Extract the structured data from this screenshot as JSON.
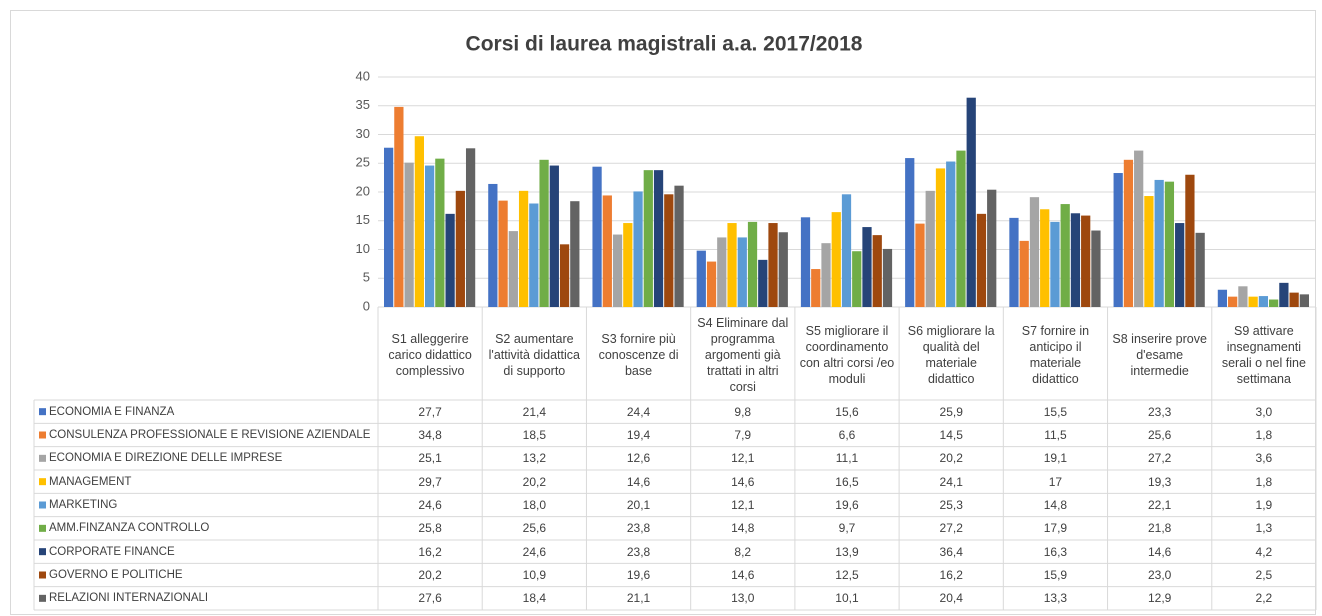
{
  "chart_data": {
    "type": "bar",
    "title": "Corsi di laurea magistrali a.a. 2017/2018",
    "categories": [
      "S1 alleggerire carico didattico complessivo",
      "S2 aumentare l'attività didattica di supporto",
      "S3 fornire più conoscenze di base",
      "S4 Eliminare dal programma argomenti già trattati in altri corsi",
      "S5 migliorare il coordinamento con altri corsi /eo moduli",
      "S6 migliorare la qualità del materiale didattico",
      "S7 fornire in anticipo il materiale didattico",
      "S8 inserire prove d'esame intermedie",
      "S9 attivare insegnamenti serali o nel fine settimana"
    ],
    "ylim": [
      0,
      40
    ],
    "yticks": [
      0,
      5,
      10,
      15,
      20,
      25,
      30,
      35,
      40
    ],
    "grid": true,
    "series": [
      {
        "name": "ECONOMIA E FINANZA",
        "color": "#4472c4",
        "values": [
          27.7,
          21.4,
          24.4,
          9.8,
          15.6,
          25.9,
          15.5,
          23.3,
          3.0
        ],
        "value_labels": [
          "27,7",
          "21,4",
          "24,4",
          "9,8",
          "15,6",
          "25,9",
          "15,5",
          "23,3",
          "3,0"
        ]
      },
      {
        "name": "CONSULENZA PROFESSIONALE E REVISIONE AZIENDALE",
        "color": "#ed7d31",
        "values": [
          34.8,
          18.5,
          19.4,
          7.9,
          6.6,
          14.5,
          11.5,
          25.6,
          1.8
        ],
        "value_labels": [
          "34,8",
          "18,5",
          "19,4",
          "7,9",
          "6,6",
          "14,5",
          "11,5",
          "25,6",
          "1,8"
        ]
      },
      {
        "name": "ECONOMIA E DIREZIONE DELLE IMPRESE",
        "color": "#a5a5a5",
        "values": [
          25.1,
          13.2,
          12.6,
          12.1,
          11.1,
          20.2,
          19.1,
          27.2,
          3.6
        ],
        "value_labels": [
          "25,1",
          "13,2",
          "12,6",
          "12,1",
          "11,1",
          "20,2",
          "19,1",
          "27,2",
          "3,6"
        ]
      },
      {
        "name": "MANAGEMENT",
        "color": "#ffc000",
        "values": [
          29.7,
          20.2,
          14.6,
          14.6,
          16.5,
          24.1,
          17,
          19.3,
          1.8
        ],
        "value_labels": [
          "29,7",
          "20,2",
          "14,6",
          "14,6",
          "16,5",
          "24,1",
          "17",
          "19,3",
          "1,8"
        ]
      },
      {
        "name": "MARKETING",
        "color": "#5b9bd5",
        "values": [
          24.6,
          18.0,
          20.1,
          12.1,
          19.6,
          25.3,
          14.8,
          22.1,
          1.9
        ],
        "value_labels": [
          "24,6",
          "18,0",
          "20,1",
          "12,1",
          "19,6",
          "25,3",
          "14,8",
          "22,1",
          "1,9"
        ]
      },
      {
        "name": "AMM.FINZANZA CONTROLLO",
        "color": "#70ad47",
        "values": [
          25.8,
          25.6,
          23.8,
          14.8,
          9.7,
          27.2,
          17.9,
          21.8,
          1.3
        ],
        "value_labels": [
          "25,8",
          "25,6",
          "23,8",
          "14,8",
          "9,7",
          "27,2",
          "17,9",
          "21,8",
          "1,3"
        ]
      },
      {
        "name": "CORPORATE FINANCE",
        "color": "#264478",
        "values": [
          16.2,
          24.6,
          23.8,
          8.2,
          13.9,
          36.4,
          16.3,
          14.6,
          4.2
        ],
        "value_labels": [
          "16,2",
          "24,6",
          "23,8",
          "8,2",
          "13,9",
          "36,4",
          "16,3",
          "14,6",
          "4,2"
        ]
      },
      {
        "name": "GOVERNO E POLITICHE",
        "color": "#9e480e",
        "values": [
          20.2,
          10.9,
          19.6,
          14.6,
          12.5,
          16.2,
          15.9,
          23.0,
          2.5
        ],
        "value_labels": [
          "20,2",
          "10,9",
          "19,6",
          "14,6",
          "12,5",
          "16,2",
          "15,9",
          "23,0",
          "2,5"
        ]
      },
      {
        "name": "RELAZIONI INTERNAZIONALI",
        "color": "#636363",
        "values": [
          27.6,
          18.4,
          21.1,
          13.0,
          10.1,
          20.4,
          13.3,
          12.9,
          2.2
        ],
        "value_labels": [
          "27,6",
          "18,4",
          "21,1",
          "13,0",
          "10,1",
          "20,4",
          "13,3",
          "12,9",
          "2,2"
        ]
      }
    ]
  }
}
